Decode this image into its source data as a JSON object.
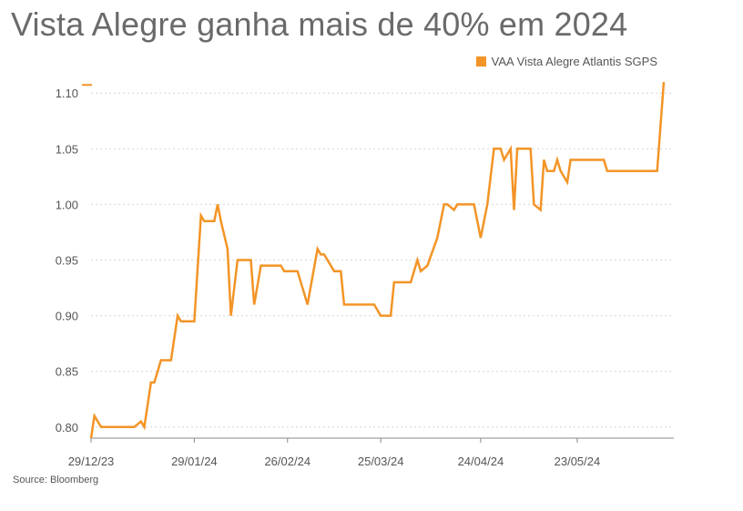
{
  "title": "Vista Alegre ganha mais de 40% em 2024",
  "source": "Source: Bloomberg",
  "colors": {
    "line": "#f39426",
    "grid": "#d6d6d6",
    "axis": "#888888"
  },
  "chart_data": {
    "type": "line",
    "title": "Vista Alegre ganha mais de 40% em 2024",
    "xlabel": "",
    "ylabel": "",
    "ylim": [
      0.79,
      1.11
    ],
    "y_ticks": [
      0.8,
      0.85,
      0.9,
      0.95,
      1.0,
      1.05,
      1.1
    ],
    "y_tick_labels": [
      "0.80",
      "0.85",
      "0.90",
      "0.95",
      "1.00",
      "1.05",
      "1.10"
    ],
    "x_tick_labels": [
      "29/12/23",
      "29/01/24",
      "26/02/24",
      "25/03/24",
      "24/04/24",
      "23/05/24"
    ],
    "x_tick_dates": [
      "2023-12-29",
      "2024-01-29",
      "2024-02-26",
      "2024-03-25",
      "2024-04-24",
      "2024-05-23"
    ],
    "x_range": [
      "2023-12-29",
      "2024-06-21"
    ],
    "grid": "horizontal dotted",
    "legend_position": "top-right",
    "series": [
      {
        "name": "VAA Vista Alegre Atlantis SGPS",
        "color": "#f39426",
        "points": [
          [
            "2023-12-29",
            0.79
          ],
          [
            "2023-12-30",
            0.81
          ],
          [
            "2024-01-01",
            0.8
          ],
          [
            "2024-01-02",
            0.8
          ],
          [
            "2024-01-05",
            0.8
          ],
          [
            "2024-01-08",
            0.8
          ],
          [
            "2024-01-11",
            0.8
          ],
          [
            "2024-01-13",
            0.805
          ],
          [
            "2024-01-14",
            0.8
          ],
          [
            "2024-01-16",
            0.84
          ],
          [
            "2024-01-17",
            0.84
          ],
          [
            "2024-01-19",
            0.86
          ],
          [
            "2024-01-22",
            0.86
          ],
          [
            "2024-01-24",
            0.9
          ],
          [
            "2024-01-25",
            0.895
          ],
          [
            "2024-01-27",
            0.895
          ],
          [
            "2024-01-29",
            0.895
          ],
          [
            "2024-01-31",
            0.99
          ],
          [
            "2024-02-01",
            0.985
          ],
          [
            "2024-02-04",
            0.985
          ],
          [
            "2024-02-05",
            1.0
          ],
          [
            "2024-02-06",
            0.985
          ],
          [
            "2024-02-08",
            0.96
          ],
          [
            "2024-02-09",
            0.9
          ],
          [
            "2024-02-11",
            0.95
          ],
          [
            "2024-02-13",
            0.95
          ],
          [
            "2024-02-15",
            0.95
          ],
          [
            "2024-02-16",
            0.91
          ],
          [
            "2024-02-18",
            0.945
          ],
          [
            "2024-02-22",
            0.945
          ],
          [
            "2024-02-24",
            0.945
          ],
          [
            "2024-02-25",
            0.94
          ],
          [
            "2024-02-29",
            0.94
          ],
          [
            "2024-03-02",
            0.92
          ],
          [
            "2024-03-03",
            0.91
          ],
          [
            "2024-03-06",
            0.96
          ],
          [
            "2024-03-07",
            0.955
          ],
          [
            "2024-03-08",
            0.955
          ],
          [
            "2024-03-11",
            0.94
          ],
          [
            "2024-03-13",
            0.94
          ],
          [
            "2024-03-14",
            0.91
          ],
          [
            "2024-03-18",
            0.91
          ],
          [
            "2024-03-21",
            0.91
          ],
          [
            "2024-03-23",
            0.91
          ],
          [
            "2024-03-25",
            0.9
          ],
          [
            "2024-03-28",
            0.9
          ],
          [
            "2024-03-29",
            0.93
          ],
          [
            "2024-03-31",
            0.93
          ],
          [
            "2024-04-03",
            0.93
          ],
          [
            "2024-04-05",
            0.95
          ],
          [
            "2024-04-06",
            0.94
          ],
          [
            "2024-04-08",
            0.945
          ],
          [
            "2024-04-11",
            0.97
          ],
          [
            "2024-04-13",
            1.0
          ],
          [
            "2024-04-14",
            1.0
          ],
          [
            "2024-04-16",
            0.995
          ],
          [
            "2024-04-17",
            1.0
          ],
          [
            "2024-04-22",
            1.0
          ],
          [
            "2024-04-24",
            0.97
          ],
          [
            "2024-04-26",
            1.0
          ],
          [
            "2024-04-28",
            1.05
          ],
          [
            "2024-04-30",
            1.05
          ],
          [
            "2024-05-01",
            1.04
          ],
          [
            "2024-05-03",
            1.05
          ],
          [
            "2024-05-04",
            0.995
          ],
          [
            "2024-05-05",
            1.05
          ],
          [
            "2024-05-09",
            1.05
          ],
          [
            "2024-05-10",
            1.0
          ],
          [
            "2024-05-12",
            0.995
          ],
          [
            "2024-05-13",
            1.04
          ],
          [
            "2024-05-14",
            1.03
          ],
          [
            "2024-05-16",
            1.03
          ],
          [
            "2024-05-17",
            1.04
          ],
          [
            "2024-05-18",
            1.03
          ],
          [
            "2024-05-20",
            1.02
          ],
          [
            "2024-05-21",
            1.04
          ],
          [
            "2024-05-24",
            1.04
          ],
          [
            "2024-05-28",
            1.04
          ],
          [
            "2024-05-31",
            1.04
          ],
          [
            "2024-06-01",
            1.03
          ],
          [
            "2024-06-05",
            1.03
          ],
          [
            "2024-06-10",
            1.03
          ],
          [
            "2024-06-14",
            1.03
          ],
          [
            "2024-06-16",
            1.03
          ],
          [
            "2024-06-18",
            1.11
          ]
        ]
      }
    ]
  }
}
